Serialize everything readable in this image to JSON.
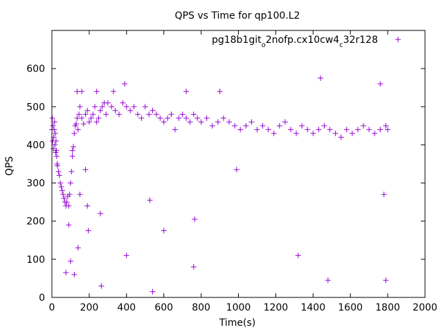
{
  "chart_data": {
    "type": "scatter",
    "title": "QPS vs Time for qp100.L2",
    "xlabel": "Time(s)",
    "ylabel": "QPS",
    "xlim": [
      0,
      2000
    ],
    "ylim": [
      0,
      700
    ],
    "xticks": [
      0,
      200,
      400,
      600,
      800,
      1000,
      1200,
      1400,
      1600,
      1800,
      2000
    ],
    "yticks": [
      0,
      100,
      200,
      300,
      400,
      500,
      600
    ],
    "xtick_labels": [
      "0",
      "200",
      "400",
      "600",
      "800",
      "1000",
      "1200",
      "1400",
      "1600",
      "1800",
      "2000"
    ],
    "ytick_labels": [
      "0",
      "100",
      "200",
      "300",
      "400",
      "500",
      "600"
    ],
    "legend": {
      "position": "top-right",
      "label_parts": [
        "pg18b1git",
        "o",
        "2nofp.cx10cw4",
        "c",
        "32r128"
      ]
    },
    "grid": false,
    "marker": "+",
    "color": "#9400d3",
    "series": [
      {
        "name": "pg18b1git_o2nofp.cx10cw4_c32r128",
        "x": [
          0,
          2,
          4,
          6,
          8,
          10,
          12,
          14,
          16,
          18,
          20,
          22,
          24,
          26,
          28,
          30,
          35,
          40,
          45,
          50,
          55,
          60,
          65,
          70,
          75,
          80,
          85,
          90,
          95,
          100,
          105,
          110,
          115,
          120,
          125,
          130,
          135,
          140,
          145,
          150,
          160,
          170,
          180,
          190,
          200,
          210,
          220,
          230,
          240,
          250,
          260,
          270,
          280,
          290,
          300,
          320,
          340,
          360,
          380,
          400,
          420,
          440,
          460,
          480,
          500,
          520,
          540,
          560,
          580,
          600,
          620,
          640,
          660,
          680,
          700,
          720,
          740,
          760,
          780,
          800,
          830,
          860,
          890,
          920,
          950,
          980,
          1010,
          1040,
          1070,
          1100,
          1130,
          1160,
          1190,
          1220,
          1250,
          1280,
          1310,
          1340,
          1370,
          1400,
          1430,
          1460,
          1490,
          1520,
          1550,
          1580,
          1610,
          1640,
          1670,
          1700,
          1730,
          1760,
          1790,
          1800,
          75,
          90,
          100,
          120,
          140,
          150,
          180,
          190,
          195,
          260,
          265,
          400,
          525,
          540,
          600,
          760,
          765,
          990,
          1320,
          1480,
          1780,
          1790,
          110,
          135,
          160,
          240,
          330,
          390,
          720,
          900,
          1440,
          1760
        ],
        "y": [
          440,
          470,
          410,
          450,
          390,
          420,
          440,
          460,
          400,
          430,
          380,
          410,
          385,
          370,
          350,
          345,
          330,
          320,
          300,
          290,
          280,
          270,
          260,
          250,
          240,
          250,
          265,
          240,
          270,
          300,
          330,
          370,
          395,
          430,
          450,
          455,
          470,
          440,
          480,
          500,
          470,
          455,
          480,
          490,
          460,
          470,
          480,
          500,
          460,
          470,
          490,
          500,
          510,
          480,
          510,
          500,
          490,
          480,
          510,
          500,
          490,
          500,
          480,
          470,
          500,
          480,
          490,
          480,
          470,
          460,
          470,
          480,
          440,
          470,
          480,
          470,
          460,
          480,
          470,
          460,
          470,
          450,
          460,
          470,
          460,
          450,
          440,
          450,
          460,
          440,
          450,
          440,
          430,
          450,
          460,
          440,
          430,
          450,
          440,
          430,
          440,
          450,
          440,
          430,
          420,
          440,
          430,
          440,
          450,
          440,
          430,
          440,
          450,
          440,
          65,
          190,
          95,
          60,
          130,
          270,
          335,
          240,
          175,
          220,
          30,
          110,
          255,
          15,
          175,
          80,
          205,
          335,
          110,
          45,
          270,
          45,
          385,
          540,
          540,
          540,
          540,
          560,
          540,
          540,
          575,
          560
        ]
      }
    ]
  }
}
